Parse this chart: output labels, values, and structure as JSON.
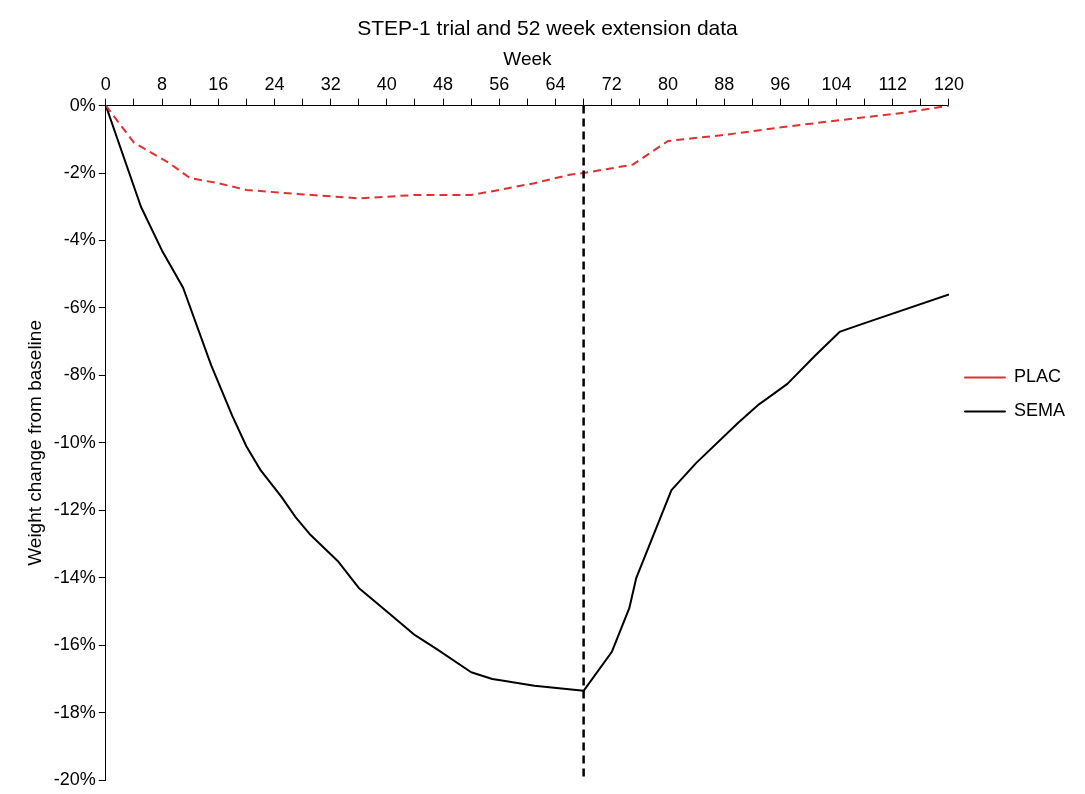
{
  "chart_data": {
    "type": "line",
    "title": "STEP-1 trial and 52 week extension data",
    "xlabel": "Week",
    "ylabel": "Weight change from baseline",
    "xlim": [
      0,
      120
    ],
    "xticks": [
      0,
      {
        "value": 4,
        "label": null
      },
      8,
      {
        "value": 12,
        "label": null
      },
      16,
      {
        "value": 20,
        "label": null
      },
      24,
      {
        "value": 28,
        "label": null
      },
      32,
      {
        "value": 36,
        "label": null
      },
      40,
      {
        "value": 44,
        "label": null
      },
      48,
      {
        "value": 52,
        "label": null
      },
      56,
      {
        "value": 60,
        "label": null
      },
      64,
      {
        "value": 68,
        "label": null
      },
      72,
      {
        "value": 76,
        "label": null
      },
      80,
      {
        "value": 84,
        "label": null
      },
      88,
      {
        "value": 92,
        "label": null
      },
      96,
      {
        "value": 100,
        "label": null
      },
      104,
      {
        "value": 108,
        "label": null
      },
      112,
      {
        "value": 116,
        "label": null
      },
      120
    ],
    "ylim": [
      -20,
      0
    ],
    "yticks": [
      {
        "value": 0,
        "label": "0%"
      },
      {
        "value": -2,
        "label": "-2%"
      },
      {
        "value": -4,
        "label": "-4%"
      },
      {
        "value": -6,
        "label": "-6%"
      },
      {
        "value": -8,
        "label": "-8%"
      },
      {
        "value": -10,
        "label": "-10%"
      },
      {
        "value": -12,
        "label": "-12%"
      },
      {
        "value": -14,
        "label": "-14%"
      },
      {
        "value": -16,
        "label": "-16%"
      },
      {
        "value": -18,
        "label": "-18%"
      },
      {
        "value": -20,
        "label": "-20%"
      }
    ],
    "grid": false,
    "legend": "right",
    "marker": "none",
    "series": [
      {
        "name": "PLAC",
        "color": "#e03030",
        "line_style": "dashed",
        "x": [
          0,
          4,
          9,
          12,
          16,
          20,
          26,
          36,
          40,
          44,
          52,
          56,
          61,
          66,
          68,
          75,
          80,
          88,
          97,
          107,
          114,
          120
        ],
        "values": [
          0,
          -1.1,
          -1.7,
          -2.15,
          -2.3,
          -2.5,
          -2.6,
          -2.75,
          -2.7,
          -2.65,
          -2.65,
          -2.5,
          -2.3,
          -2.05,
          -2.0,
          -1.75,
          -1.05,
          -0.87,
          -0.62,
          -0.37,
          -0.2,
          0
        ]
      },
      {
        "name": "SEMA",
        "color": "#000000",
        "line_style": "solid",
        "x": [
          0,
          5,
          8,
          11,
          15,
          18,
          20,
          22,
          25,
          27,
          29,
          33,
          36,
          40,
          44,
          47,
          52,
          55,
          61,
          68,
          72,
          74.5,
          75.5,
          80.5,
          84,
          90,
          93,
          97,
          101,
          104.5,
          108,
          120
        ],
        "values": [
          0,
          -3.0,
          -4.3,
          -5.4,
          -7.7,
          -9.2,
          -10.1,
          -10.8,
          -11.6,
          -12.2,
          -12.7,
          -13.5,
          -14.3,
          -15.0,
          -15.7,
          -16.1,
          -16.8,
          -17.0,
          -17.2,
          -17.35,
          -16.2,
          -14.9,
          -14.0,
          -11.4,
          -10.6,
          -9.4,
          -8.85,
          -8.25,
          -7.4,
          -6.7,
          -6.45,
          -5.6
        ]
      }
    ],
    "ref_lines": [
      {
        "axis": "x",
        "value": 68,
        "color": "#000000",
        "line_style": "dashed"
      }
    ]
  }
}
